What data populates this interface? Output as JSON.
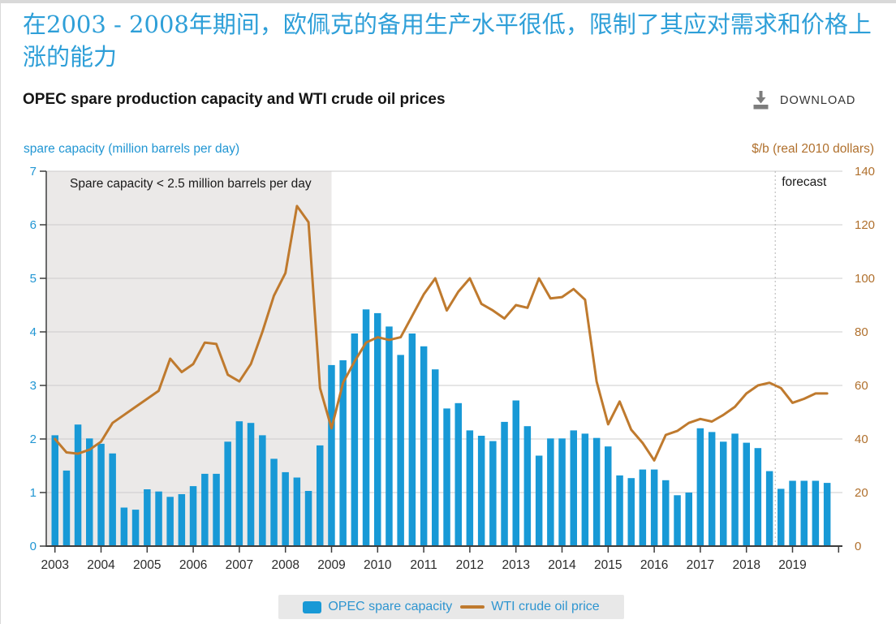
{
  "page": {
    "title_zh": "在2003 - 2008年期间，欧佩克的备用生产水平很低，限制了其应对需求和价格上涨的能力",
    "subtitle": "OPEC spare production capacity and WTI crude oil prices",
    "download_label": "DOWNLOAD"
  },
  "colors": {
    "bar": "#1899d6",
    "line": "#bf7a2e",
    "left_axis_text": "#2196d3",
    "right_axis_text": "#b0702d",
    "shading": "#ebe9e8",
    "gridline": "#cccccc",
    "axis_line": "#3c3c3c",
    "forecast_divider": "#b3b3b3",
    "x_label": "#2b2b2b",
    "annotation_text": "#1a1a1a"
  },
  "chart_data": {
    "type": "bar",
    "x_years": [
      "2003",
      "2004",
      "2005",
      "2006",
      "2007",
      "2008",
      "2009",
      "2010",
      "2011",
      "2012",
      "2013",
      "2014",
      "2015",
      "2016",
      "2017",
      "2018",
      "2019"
    ],
    "quarters_per_year": 4,
    "left_axis": {
      "title": "spare capacity (million barrels per day)",
      "ticks": [
        0,
        1,
        2,
        3,
        4,
        5,
        6,
        7
      ],
      "range": [
        0,
        7
      ]
    },
    "right_axis": {
      "title": "$/b (real 2010 dollars)",
      "ticks": [
        0,
        20,
        40,
        60,
        80,
        100,
        120,
        140
      ],
      "range": [
        0,
        140
      ]
    },
    "series": [
      {
        "name": "OPEC spare capacity",
        "kind": "bar",
        "axis": "left",
        "values": [
          2.07,
          1.41,
          2.27,
          2.01,
          1.91,
          1.73,
          0.72,
          0.68,
          1.06,
          1.02,
          0.92,
          0.97,
          1.12,
          1.35,
          1.35,
          1.95,
          2.33,
          2.3,
          2.07,
          1.63,
          1.38,
          1.28,
          1.03,
          1.88,
          3.38,
          3.47,
          3.97,
          4.42,
          4.35,
          4.1,
          3.57,
          3.97,
          3.73,
          3.3,
          2.57,
          2.67,
          2.16,
          2.06,
          1.96,
          2.32,
          2.72,
          2.24,
          1.69,
          2.01,
          2.01,
          2.16,
          2.1,
          2.02,
          1.86,
          1.32,
          1.27,
          1.43,
          1.43,
          1.23,
          0.95,
          1.0,
          2.2,
          2.13,
          1.95,
          2.1,
          1.93,
          1.83,
          1.4,
          1.07,
          1.22,
          1.22,
          1.22,
          1.18
        ]
      },
      {
        "name": "WTI crude oil price",
        "kind": "line",
        "axis": "right",
        "values": [
          40,
          35,
          34.5,
          36,
          39,
          46,
          49,
          52,
          55,
          58,
          70,
          65,
          68,
          76,
          75.5,
          64,
          61.5,
          68,
          80,
          93.5,
          102,
          127,
          121,
          59,
          44,
          61,
          69,
          76,
          78,
          77,
          78,
          86,
          94,
          100,
          88,
          95,
          100,
          90.5,
          88,
          85,
          90,
          89,
          100,
          92.5,
          93,
          96,
          92,
          61.5,
          45.5,
          54,
          43.5,
          38.5,
          32,
          41.5,
          43,
          46,
          47.5,
          46.5,
          49,
          52,
          57,
          60,
          61,
          59,
          53.5,
          55,
          57,
          57
        ]
      }
    ],
    "annotations": {
      "shaded_label": "Spare capacity < 2.5 million barrels per day",
      "shaded_region_quarters": [
        0,
        24
      ],
      "forecast_label": "forecast",
      "forecast_boundary_quarter": 62.5
    },
    "grid": true,
    "legend_position": "bottom"
  },
  "legend": {
    "items": [
      {
        "label": "OPEC spare capacity",
        "type": "bar"
      },
      {
        "label": "WTI crude oil price",
        "type": "line"
      }
    ]
  }
}
